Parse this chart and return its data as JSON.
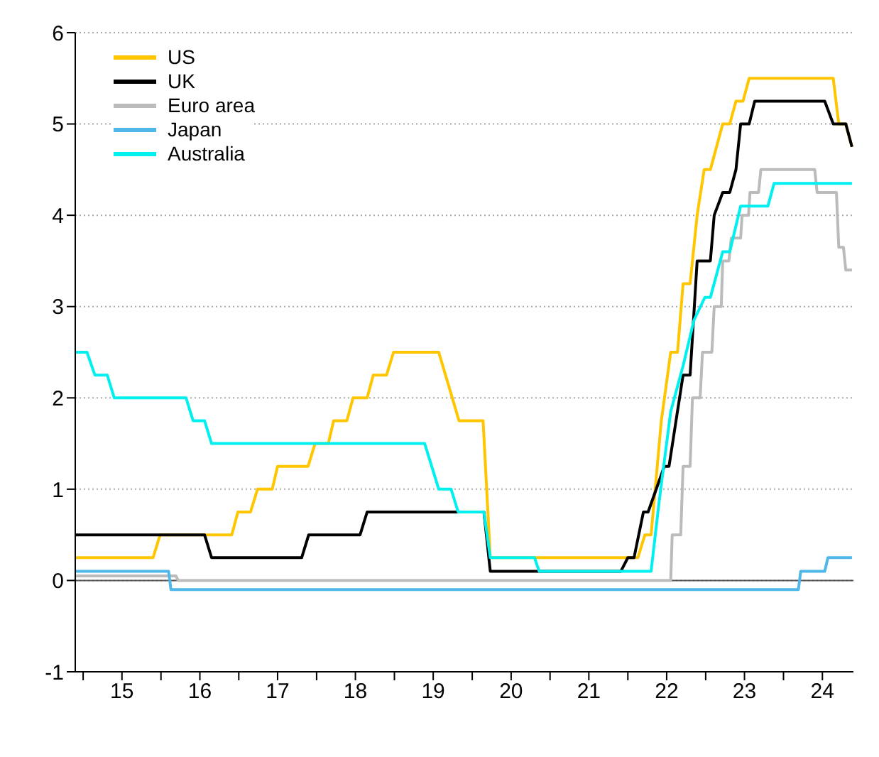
{
  "chart_data": {
    "type": "line",
    "xlim": [
      "2014-11-25",
      "2024-11-25"
    ],
    "ylim": [
      -1,
      6
    ],
    "xticks": [
      {
        "value": "2015-01-01",
        "label": null
      },
      {
        "value": "2015-07-02",
        "label": "15"
      },
      {
        "value": "2016-01-01",
        "label": null
      },
      {
        "value": "2016-07-02",
        "label": "16"
      },
      {
        "value": "2017-01-01",
        "label": null
      },
      {
        "value": "2017-07-02",
        "label": "17"
      },
      {
        "value": "2018-01-01",
        "label": null
      },
      {
        "value": "2018-07-02",
        "label": "18"
      },
      {
        "value": "2019-01-01",
        "label": null
      },
      {
        "value": "2019-07-02",
        "label": "19"
      },
      {
        "value": "2020-01-01",
        "label": null
      },
      {
        "value": "2020-07-02",
        "label": "20"
      },
      {
        "value": "2021-01-01",
        "label": null
      },
      {
        "value": "2021-07-02",
        "label": "21"
      },
      {
        "value": "2022-01-01",
        "label": null
      },
      {
        "value": "2022-07-02",
        "label": "22"
      },
      {
        "value": "2023-01-01",
        "label": null
      },
      {
        "value": "2023-07-02",
        "label": "23"
      },
      {
        "value": "2024-01-01",
        "label": null
      },
      {
        "value": "2024-07-02",
        "label": "24"
      }
    ],
    "yticks": [
      -1,
      0,
      1,
      2,
      3,
      4,
      5,
      6
    ],
    "grid": "y",
    "legend": "top left",
    "marker": "none",
    "line_style": "solid",
    "ref_lines": [
      {
        "axis": "y",
        "value": 0,
        "color": "#555555"
      }
    ],
    "series": [
      {
        "name": "US",
        "color": "#ffc600",
        "x": [
          "2014-11-25",
          "2015-11-25",
          "2015-12-28",
          "2016-11-29",
          "2016-12-28",
          "2017-02-25",
          "2017-03-30",
          "2017-06-07",
          "2017-07-02",
          "2017-11-22",
          "2017-12-25",
          "2018-02-25",
          "2018-03-22",
          "2018-05-23",
          "2018-06-21",
          "2018-08-26",
          "2018-09-24",
          "2018-11-25",
          "2018-12-28",
          "2019-07-28",
          "2019-10-31",
          "2020-02-21",
          "2020-03-26",
          "2022-02-17",
          "2022-03-22",
          "2022-04-20",
          "2022-06-07",
          "2022-07-21",
          "2022-08-22",
          "2022-09-17",
          "2022-10-20",
          "2022-11-22",
          "2022-12-25",
          "2023-01-23",
          "2023-03-22",
          "2023-04-24",
          "2023-05-23",
          "2023-06-25",
          "2023-07-24",
          "2024-08-22",
          "2024-09-17",
          "2024-10-20",
          "2024-11-18"
        ],
        "values": [
          0.25,
          0.25,
          0.5,
          0.5,
          0.75,
          0.75,
          1,
          1,
          1.25,
          1.25,
          1.5,
          1.5,
          1.75,
          1.75,
          2,
          2,
          2.25,
          2.25,
          2.5,
          2.5,
          1.75,
          1.75,
          0.25,
          0.25,
          0.5,
          0.5,
          1.75,
          2.5,
          2.5,
          3.25,
          3.25,
          4,
          4.5,
          4.5,
          5,
          5,
          5.25,
          5.25,
          5.5,
          5.5,
          5,
          5,
          4.75
        ]
      },
      {
        "name": "UK",
        "color": "#000000",
        "x": [
          "2014-11-25",
          "2016-07-24",
          "2016-08-26",
          "2017-10-23",
          "2017-11-25",
          "2018-07-24",
          "2018-08-26",
          "2020-02-25",
          "2020-03-26",
          "2021-11-29",
          "2022-01-01",
          "2022-01-30",
          "2022-03-15",
          "2022-04-06",
          "2022-06-21",
          "2022-07-13",
          "2022-09-17",
          "2022-10-20",
          "2022-11-22",
          "2023-01-23",
          "2023-02-10",
          "2023-03-22",
          "2023-04-24",
          "2023-05-23",
          "2023-06-14",
          "2023-07-24",
          "2023-08-19",
          "2024-07-13",
          "2024-08-22",
          "2024-10-20",
          "2024-11-18"
        ],
        "values": [
          0.5,
          0.5,
          0.25,
          0.25,
          0.5,
          0.5,
          0.75,
          0.75,
          0.1,
          0.1,
          0.25,
          0.25,
          0.75,
          0.75,
          1.25,
          1.25,
          2.25,
          2.25,
          3.5,
          3.5,
          4,
          4.25,
          4.25,
          4.5,
          5,
          5,
          5.25,
          5.25,
          5,
          5,
          4.75
        ]
      },
      {
        "name": "Euro area",
        "color": "#bbbbbb",
        "x": [
          "2014-11-25",
          "2016-03-11",
          "2016-03-22",
          "2022-07-21",
          "2022-07-28",
          "2022-09-06",
          "2022-09-17",
          "2022-10-20",
          "2022-10-31",
          "2022-12-06",
          "2022-12-17",
          "2023-01-30",
          "2023-02-10",
          "2023-03-15",
          "2023-03-22",
          "2023-04-20",
          "2023-05-01",
          "2023-06-14",
          "2023-06-21",
          "2023-07-21",
          "2023-07-28",
          "2023-09-06",
          "2023-09-17",
          "2024-05-27",
          "2024-06-07",
          "2024-09-06",
          "2024-09-17",
          "2024-10-09",
          "2024-10-20",
          "2024-11-18"
        ],
        "values": [
          0.05,
          0.05,
          0,
          0,
          0.5,
          0.5,
          1.25,
          1.25,
          2,
          2,
          2.5,
          2.5,
          3,
          3,
          3.5,
          3.5,
          3.75,
          3.75,
          4,
          4,
          4.25,
          4.25,
          4.5,
          4.5,
          4.25,
          4.25,
          3.65,
          3.65,
          3.4,
          3.4
        ]
      },
      {
        "name": "Japan",
        "color": "#4fb8e8",
        "x": [
          "2014-11-25",
          "2016-02-06",
          "2016-02-17",
          "2024-03-11",
          "2024-03-22",
          "2024-07-13",
          "2024-07-28",
          "2024-11-18"
        ],
        "values": [
          0.1,
          0.1,
          -0.1,
          -0.1,
          0.1,
          0.1,
          0.25,
          0.25
        ]
      },
      {
        "name": "Australia",
        "color": "#00f0f0",
        "x": [
          "2014-11-25",
          "2015-01-19",
          "2015-02-25",
          "2015-04-24",
          "2015-05-27",
          "2016-04-28",
          "2016-05-31",
          "2016-07-24",
          "2016-08-26",
          "2019-05-23",
          "2019-07-28",
          "2019-09-24",
          "2019-10-27",
          "2020-02-25",
          "2020-03-26",
          "2020-10-20",
          "2020-11-11",
          "2022-04-20",
          "2022-05-27",
          "2022-07-21",
          "2022-09-17",
          "2022-11-07",
          "2022-12-28",
          "2023-01-23",
          "2023-03-22",
          "2023-04-24",
          "2023-06-14",
          "2023-10-20",
          "2023-11-18",
          "2024-11-18"
        ],
        "values": [
          2.5,
          2.5,
          2.25,
          2.25,
          2,
          2,
          1.75,
          1.75,
          1.5,
          1.5,
          1,
          1,
          0.75,
          0.75,
          0.25,
          0.25,
          0.1,
          0.1,
          0.85,
          1.85,
          2.35,
          2.85,
          3.1,
          3.1,
          3.6,
          3.6,
          4.1,
          4.1,
          4.35,
          4.35
        ]
      }
    ]
  }
}
